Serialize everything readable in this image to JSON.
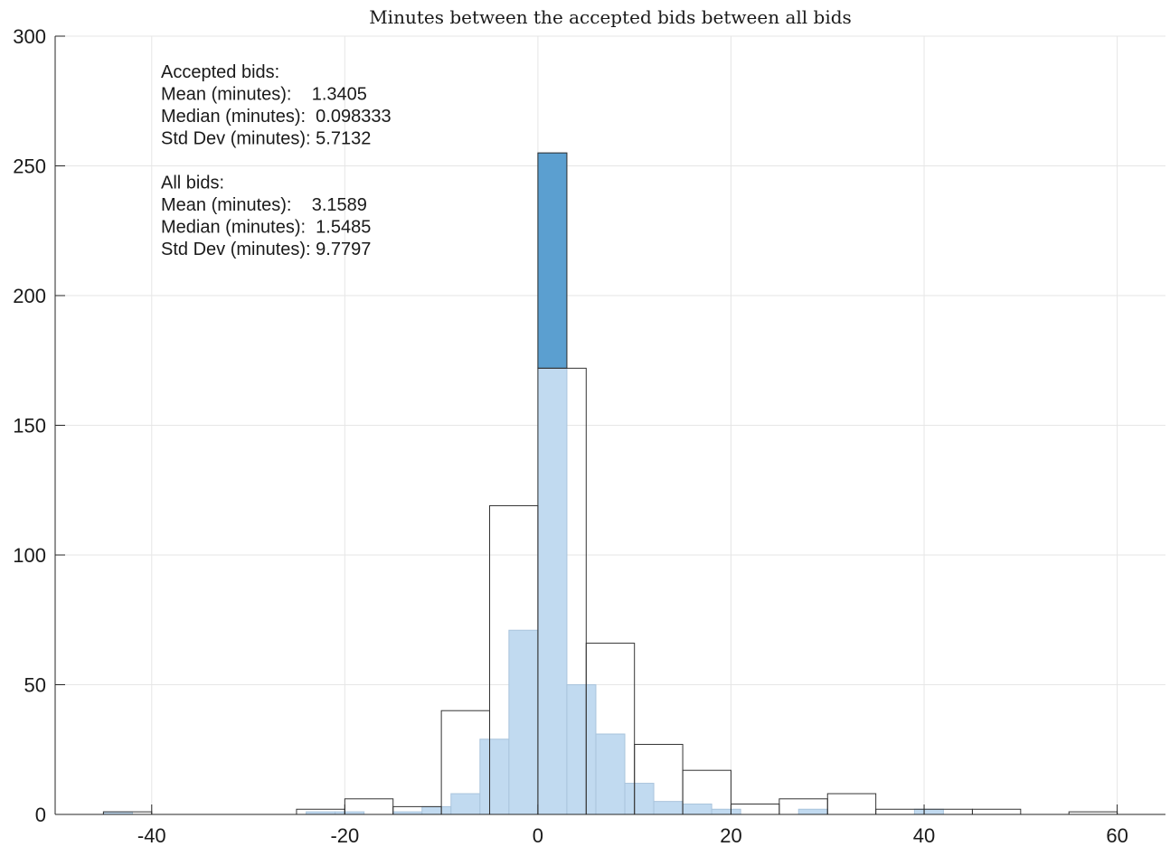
{
  "chart_data": {
    "type": "bar",
    "title": "Minutes between the accepted bids between all bids",
    "xlabel": "",
    "ylabel": "",
    "xlim": [
      -50,
      65
    ],
    "ylim": [
      0,
      300
    ],
    "x_ticks": [
      -40,
      -20,
      0,
      20,
      40,
      60
    ],
    "y_ticks": [
      0,
      50,
      100,
      150,
      200,
      250,
      300
    ],
    "grid": true,
    "series": [
      {
        "color": "#c1daf0",
        "bar_color_above": "#5b9fd0",
        "bins": [
          {
            "x0": -45,
            "x1": -42,
            "value": 1
          },
          {
            "x0": -24,
            "x1": -21,
            "value": 1
          },
          {
            "x0": -21,
            "x1": -18,
            "value": 1
          },
          {
            "x0": -15,
            "x1": -12,
            "value": 1
          },
          {
            "x0": -12,
            "x1": -9,
            "value": 3
          },
          {
            "x0": -9,
            "x1": -6,
            "value": 8
          },
          {
            "x0": -6,
            "x1": -3,
            "value": 29
          },
          {
            "x0": -3,
            "x1": 0,
            "value": 71
          },
          {
            "x0": 0,
            "x1": 3,
            "value": 255
          },
          {
            "x0": 3,
            "x1": 6,
            "value": 50
          },
          {
            "x0": 6,
            "x1": 9,
            "value": 31
          },
          {
            "x0": 9,
            "x1": 12,
            "value": 12
          },
          {
            "x0": 12,
            "x1": 15,
            "value": 5
          },
          {
            "x0": 15,
            "x1": 18,
            "value": 4
          },
          {
            "x0": 18,
            "x1": 21,
            "value": 2
          },
          {
            "x0": 27,
            "x1": 30,
            "value": 2
          },
          {
            "x0": 39,
            "x1": 42,
            "value": 2
          }
        ]
      },
      {
        "color": "none",
        "edge_color": "#333333",
        "bins": [
          {
            "x0": -45,
            "x1": -40,
            "value": 1
          },
          {
            "x0": -40,
            "x1": -35,
            "value": 0
          },
          {
            "x0": -35,
            "x1": -30,
            "value": 0
          },
          {
            "x0": -30,
            "x1": -25,
            "value": 0
          },
          {
            "x0": -25,
            "x1": -20,
            "value": 2
          },
          {
            "x0": -20,
            "x1": -15,
            "value": 6
          },
          {
            "x0": -15,
            "x1": -10,
            "value": 3
          },
          {
            "x0": -10,
            "x1": -5,
            "value": 40
          },
          {
            "x0": -5,
            "x1": 0,
            "value": 119
          },
          {
            "x0": 0,
            "x1": 5,
            "value": 172
          },
          {
            "x0": 5,
            "x1": 10,
            "value": 66
          },
          {
            "x0": 10,
            "x1": 15,
            "value": 27
          },
          {
            "x0": 15,
            "x1": 20,
            "value": 17
          },
          {
            "x0": 20,
            "x1": 25,
            "value": 4
          },
          {
            "x0": 25,
            "x1": 30,
            "value": 6
          },
          {
            "x0": 30,
            "x1": 35,
            "value": 8
          },
          {
            "x0": 35,
            "x1": 40,
            "value": 2
          },
          {
            "x0": 40,
            "x1": 45,
            "value": 2
          },
          {
            "x0": 45,
            "x1": 50,
            "value": 2
          },
          {
            "x0": 50,
            "x1": 55,
            "value": 0
          },
          {
            "x0": 55,
            "x1": 60,
            "value": 1
          }
        ]
      }
    ],
    "annotations": [
      "Accepted bids:",
      "Mean (minutes):    1.3405",
      "Median (minutes):  0.098333",
      "Std Dev (minutes): 5.7132",
      "",
      "All bids:",
      "Mean (minutes):    3.1589",
      "Median (minutes):  1.5485",
      "Std Dev (minutes): 9.7797"
    ]
  }
}
